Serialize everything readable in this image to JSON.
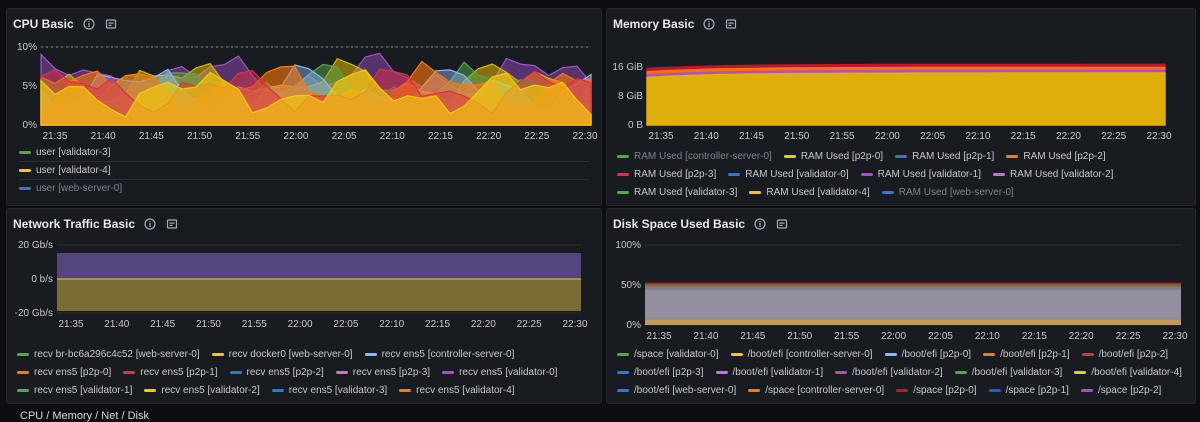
{
  "colors": {
    "green": "#56a64b",
    "yellow": "#f2cc0c",
    "blue": "#3274d9",
    "red": "#e02f44",
    "orange": "#ff780a",
    "purple": "#a352cc",
    "teal": "#8ab8ff",
    "lavender": "#b877d9",
    "darkred": "#c4162a",
    "gold": "#e0b400"
  },
  "times": [
    "21:35",
    "21:40",
    "21:45",
    "21:50",
    "21:55",
    "22:00",
    "22:05",
    "22:10",
    "22:15",
    "22:20",
    "22:25",
    "22:30"
  ],
  "cpu": {
    "title": "CPU Basic",
    "yticks": [
      "10%",
      "5%",
      "0%"
    ],
    "legend": [
      {
        "label": "user [validator-3]",
        "color": "#56a64b",
        "dim": false
      },
      {
        "label": "user [validator-4]",
        "color": "#f2cc0c",
        "dim": false
      },
      {
        "label": "user [web-server-0]",
        "color": "#3274d9",
        "dim": true
      }
    ]
  },
  "memory": {
    "title": "Memory Basic",
    "yticks": [
      "16 GiB",
      "8 GiB",
      "0 B"
    ],
    "legend_rows": [
      [
        {
          "label": "RAM Used [controller-server-0]",
          "color": "#56a64b",
          "dim": true
        },
        {
          "label": "RAM Used [p2p-0]",
          "color": "#f2cc0c",
          "dim": false
        },
        {
          "label": "RAM Used [p2p-1]",
          "color": "#3274d9",
          "dim": false
        },
        {
          "label": "RAM Used [p2p-2]",
          "color": "#ff780a",
          "dim": false
        }
      ],
      [
        {
          "label": "RAM Used [p2p-3]",
          "color": "#e02f44",
          "dim": false
        },
        {
          "label": "RAM Used [validator-0]",
          "color": "#3274d9",
          "dim": false
        },
        {
          "label": "RAM Used [validator-1]",
          "color": "#a352cc",
          "dim": false
        },
        {
          "label": "RAM Used [validator-2]",
          "color": "#b877d9",
          "dim": false
        }
      ],
      [
        {
          "label": "RAM Used [validator-3]",
          "color": "#56a64b",
          "dim": false
        },
        {
          "label": "RAM Used [validator-4]",
          "color": "#f2cc0c",
          "dim": false
        },
        {
          "label": "RAM Used [web-server-0]",
          "color": "#3274d9",
          "dim": true
        }
      ]
    ]
  },
  "network": {
    "title": "Network Traffic Basic",
    "yticks": [
      "20 Gb/s",
      "0 b/s",
      "-20 Gb/s"
    ],
    "legend_rows": [
      [
        {
          "label": "recv br-bc6a296c4c52 [web-server-0]",
          "color": "#56a64b",
          "dim": false
        },
        {
          "label": "recv docker0 [web-server-0]",
          "color": "#f2cc0c",
          "dim": false
        },
        {
          "label": "recv ens5 [controller-server-0]",
          "color": "#8ab8ff",
          "dim": false
        }
      ],
      [
        {
          "label": "recv ens5 [p2p-0]",
          "color": "#ff780a",
          "dim": false
        },
        {
          "label": "recv ens5 [p2p-1]",
          "color": "#e02f44",
          "dim": false
        },
        {
          "label": "recv ens5 [p2p-2]",
          "color": "#3274d9",
          "dim": false
        },
        {
          "label": "recv ens5 [p2p-3]",
          "color": "#b877d9",
          "dim": false
        },
        {
          "label": "recv ens5 [validator-0]",
          "color": "#a352cc",
          "dim": false
        }
      ],
      [
        {
          "label": "recv ens5 [validator-1]",
          "color": "#56a64b",
          "dim": false
        },
        {
          "label": "recv ens5 [validator-2]",
          "color": "#f2cc0c",
          "dim": false
        },
        {
          "label": "recv ens5 [validator-3]",
          "color": "#3274d9",
          "dim": false
        },
        {
          "label": "recv ens5 [validator-4]",
          "color": "#ff780a",
          "dim": false
        }
      ]
    ]
  },
  "disk": {
    "title": "Disk Space Used Basic",
    "yticks": [
      "100%",
      "50%",
      "0%"
    ],
    "legend_rows": [
      [
        {
          "label": "/space [validator-0]",
          "color": "#56a64b",
          "dim": false
        },
        {
          "label": "/boot/efi [controller-server-0]",
          "color": "#f2cc0c",
          "dim": false
        },
        {
          "label": "/boot/efi [p2p-0]",
          "color": "#8ab8ff",
          "dim": false
        },
        {
          "label": "/boot/efi [p2p-1]",
          "color": "#ff780a",
          "dim": false
        },
        {
          "label": "/boot/efi [p2p-2]",
          "color": "#e02f44",
          "dim": false
        }
      ],
      [
        {
          "label": "/boot/efi [p2p-3]",
          "color": "#3274d9",
          "dim": false
        },
        {
          "label": "/boot/efi [validator-1]",
          "color": "#b877d9",
          "dim": false
        },
        {
          "label": "/boot/efi [validator-2]",
          "color": "#a352cc",
          "dim": false
        },
        {
          "label": "/boot/efi [validator-3]",
          "color": "#56a64b",
          "dim": false
        },
        {
          "label": "/boot/efi [validator-4]",
          "color": "#f2cc0c",
          "dim": false
        }
      ],
      [
        {
          "label": "/boot/efi [web-server-0]",
          "color": "#3274d9",
          "dim": false
        },
        {
          "label": "/space [controller-server-0]",
          "color": "#ff780a",
          "dim": false
        },
        {
          "label": "/space [p2p-0]",
          "color": "#c4162a",
          "dim": false
        },
        {
          "label": "/space [p2p-1]",
          "color": "#1f60c4",
          "dim": false
        },
        {
          "label": "/space [p2p-2]",
          "color": "#a352cc",
          "dim": false
        }
      ]
    ]
  },
  "bottom_row_title": "CPU / Memory / Net / Disk"
}
